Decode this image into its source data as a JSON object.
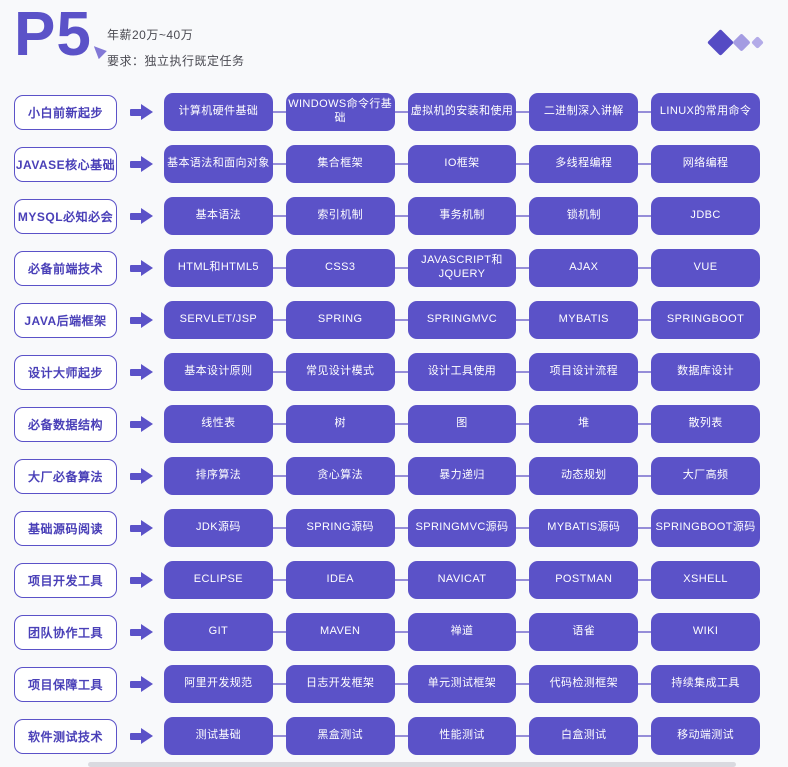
{
  "header": {
    "level": "P5",
    "salary": "年薪20万~40万",
    "requirement": "要求：独立执行既定任务"
  },
  "colors": {
    "accent": "#5B52C8",
    "label_text": "#4A40B8",
    "connector": "#968ED8",
    "background": "#F8F9FB",
    "box_text": "#FFFFFF",
    "footer_strip": "#DADAE0",
    "diamonds": [
      "#554BC4",
      "#A49CE2",
      "#B3ABE8"
    ]
  },
  "icons": {
    "row_arrow": "arrow-right-icon",
    "level_cursor": "cursor-triangle-icon",
    "decoration": "diamond-icon"
  },
  "rows": [
    {
      "category": "小白前新起步",
      "topics": [
        "计算机硬件基础",
        "WINDOWS命令行基础",
        "虚拟机的安装和使用",
        "二进制深入讲解",
        "LINUX的常用命令"
      ]
    },
    {
      "category": "JAVASE核心基础",
      "topics": [
        "基本语法和面向对象",
        "集合框架",
        "IO框架",
        "多线程编程",
        "网络编程"
      ]
    },
    {
      "category": "MYSQL必知必会",
      "topics": [
        "基本语法",
        "索引机制",
        "事务机制",
        "锁机制",
        "JDBC"
      ]
    },
    {
      "category": "必备前端技术",
      "topics": [
        "HTML和HTML5",
        "CSS3",
        "JAVASCRIPT和JQUERY",
        "AJAX",
        "VUE"
      ]
    },
    {
      "category": "JAVA后端框架",
      "topics": [
        "SERVLET/JSP",
        "SPRING",
        "SPRINGMVC",
        "MYBATIS",
        "SPRINGBOOT"
      ]
    },
    {
      "category": "设计大师起步",
      "topics": [
        "基本设计原则",
        "常见设计模式",
        "设计工具使用",
        "项目设计流程",
        "数据库设计"
      ]
    },
    {
      "category": "必备数据结构",
      "topics": [
        "线性表",
        "树",
        "图",
        "堆",
        "散列表"
      ]
    },
    {
      "category": "大厂必备算法",
      "topics": [
        "排序算法",
        "贪心算法",
        "暴力递归",
        "动态规划",
        "大厂高频"
      ]
    },
    {
      "category": "基础源码阅读",
      "topics": [
        "JDK源码",
        "SPRING源码",
        "SPRINGMVC源码",
        "MYBATIS源码",
        "SPRINGBOOT源码"
      ]
    },
    {
      "category": "项目开发工具",
      "topics": [
        "ECLIPSE",
        "IDEA",
        "NAVICAT",
        "POSTMAN",
        "XSHELL"
      ]
    },
    {
      "category": "团队协作工具",
      "topics": [
        "GIT",
        "MAVEN",
        "禅道",
        "语雀",
        "WIKI"
      ]
    },
    {
      "category": "项目保障工具",
      "topics": [
        "阿里开发规范",
        "日志开发框架",
        "单元测试框架",
        "代码检测框架",
        "持续集成工具"
      ]
    },
    {
      "category": "软件测试技术",
      "topics": [
        "测试基础",
        "黑盒测试",
        "性能测试",
        "白盒测试",
        "移动端测试"
      ]
    }
  ]
}
